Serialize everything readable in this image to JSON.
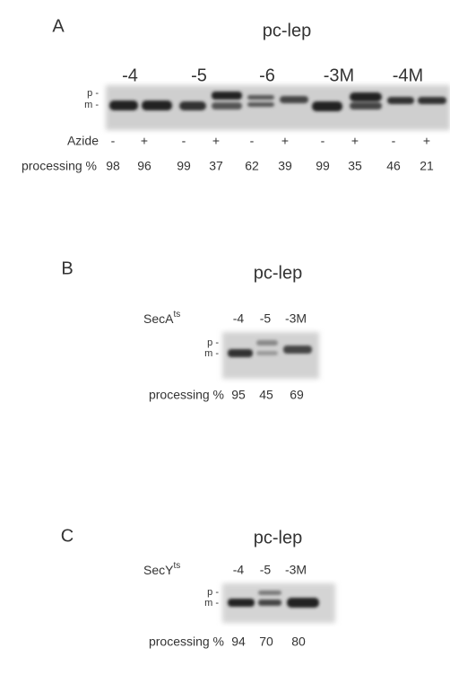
{
  "panels": [
    {
      "label": "A",
      "title": "pc-lep",
      "lanes": [
        "-4",
        "-5",
        "-6",
        "-3M",
        "-4M"
      ],
      "band_labels": [
        "p -",
        "m -"
      ],
      "azide_label": "Azide",
      "azide": [
        "-",
        "+",
        "-",
        "+",
        "-",
        "+",
        "-",
        "+",
        "-",
        "+"
      ],
      "row_label": "processing %",
      "values": [
        98,
        96,
        99,
        37,
        62,
        39,
        99,
        35,
        46,
        21
      ]
    },
    {
      "label": "B",
      "title": "pc-lep",
      "strain": {
        "name": "SecA",
        "sup": "ts"
      },
      "lanes": [
        "-4",
        "-5",
        "-3M"
      ],
      "band_labels": [
        "p -",
        "m -"
      ],
      "row_label": "processing %",
      "values": [
        95,
        45,
        69
      ]
    },
    {
      "label": "C",
      "title": "pc-lep",
      "strain": {
        "name": "SecY",
        "sup": "ts"
      },
      "lanes": [
        "-4",
        "-5",
        "-3M"
      ],
      "band_labels": [
        "p -",
        "m -"
      ],
      "row_label": "processing %",
      "values": [
        94,
        70,
        80
      ]
    }
  ]
}
